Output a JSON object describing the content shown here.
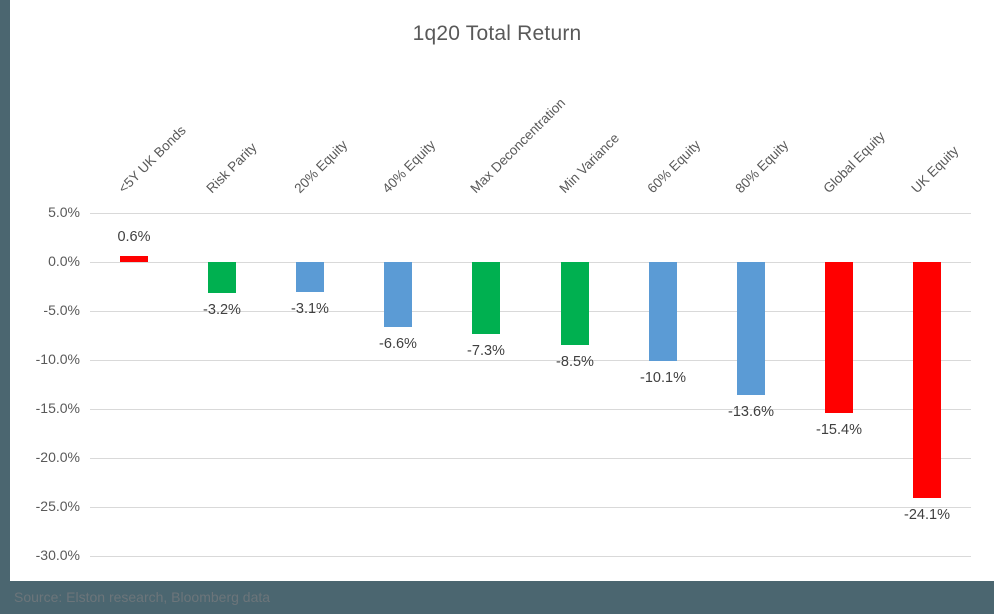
{
  "chart_data": {
    "type": "bar",
    "title": "1q20 Total Return",
    "categories": [
      "<5Y UK Bonds",
      "Risk Parity",
      "20% Equity",
      "40% Equity",
      "Max Deconcentration",
      "Min Variance",
      "60% Equity",
      "80% Equity",
      "Global Equity",
      "UK Equity"
    ],
    "values": [
      0.6,
      -3.2,
      -3.1,
      -6.6,
      -7.3,
      -8.5,
      -10.1,
      -13.6,
      -15.4,
      -24.1
    ],
    "value_labels": [
      "0.6%",
      "-3.2%",
      "-3.1%",
      "-6.6%",
      "-7.3%",
      "-8.5%",
      "-10.1%",
      "-13.6%",
      "-15.4%",
      "-24.1%"
    ],
    "bar_colors": [
      "#FF0000",
      "#00B050",
      "#5B9BD5",
      "#5B9BD5",
      "#00B050",
      "#00B050",
      "#5B9BD5",
      "#5B9BD5",
      "#FF0000",
      "#FF0000"
    ],
    "xlabel": "",
    "ylabel": "",
    "ylim": [
      -30,
      5
    ],
    "ytick_values": [
      5,
      0,
      -5,
      -10,
      -15,
      -20,
      -25,
      -30
    ],
    "ytick_labels": [
      "5.0%",
      "0.0%",
      "-5.0%",
      "-10.0%",
      "-15.0%",
      "-20.0%",
      "-25.0%",
      "-30.0%"
    ],
    "grid": true,
    "legend": false
  },
  "source": {
    "text": "Source: Elston research, Bloomberg data"
  },
  "colors": {
    "accent_bar": "#4B6670",
    "gridline": "#D9D9D9",
    "title_text": "#595959",
    "axis_text": "#595959",
    "category_text": "#595959",
    "value_label_text": "#404040",
    "source_text": "#6C757A",
    "bar_red": "#FF0000",
    "bar_green": "#00B050",
    "bar_blue": "#5B9BD5"
  }
}
